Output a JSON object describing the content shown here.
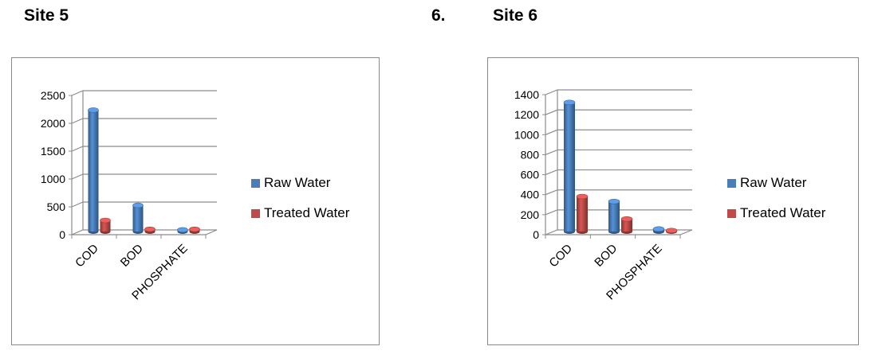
{
  "headings": {
    "site5": "Site 5",
    "number6": "6.",
    "site6": "Site 6"
  },
  "colors": {
    "raw": "#4a7ebb",
    "treated": "#be4b48",
    "grid": "#8c8c8c"
  },
  "chart_data": [
    {
      "type": "bar",
      "title": "",
      "xlabel": "",
      "ylabel": "",
      "categories": [
        "COD",
        "BOD",
        "PHOSPHATE"
      ],
      "series": [
        {
          "name": "Raw Water",
          "values": [
            2180,
            470,
            30
          ]
        },
        {
          "name": "Treated Water",
          "values": [
            200,
            40,
            40
          ]
        }
      ],
      "ylim": [
        0,
        2500
      ],
      "yticks": [
        0,
        500,
        1000,
        1500,
        2000,
        2500
      ],
      "grid": true,
      "legend": "right"
    },
    {
      "type": "bar",
      "title": "",
      "xlabel": "",
      "ylabel": "",
      "categories": [
        "COD",
        "BOD",
        "PHOSPHATE"
      ],
      "series": [
        {
          "name": "Raw Water",
          "values": [
            1290,
            300,
            25
          ]
        },
        {
          "name": "Treated Water",
          "values": [
            350,
            125,
            10
          ]
        }
      ],
      "ylim": [
        0,
        1400
      ],
      "yticks": [
        0,
        200,
        400,
        600,
        800,
        1000,
        1200,
        1400
      ],
      "grid": true,
      "legend": "right"
    }
  ]
}
